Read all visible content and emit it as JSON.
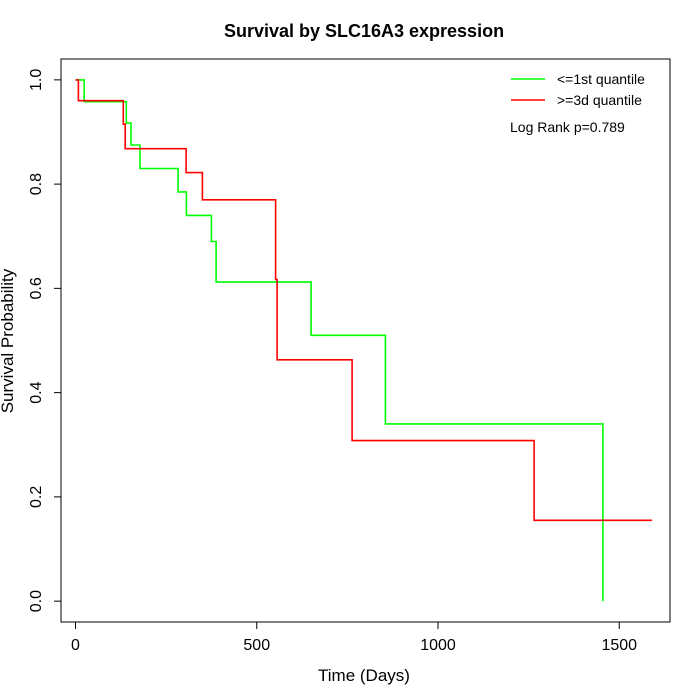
{
  "chart_data": {
    "type": "line",
    "title": "Survival by SLC16A3 expression",
    "xlabel": "Time (Days)",
    "ylabel": "Survival Probability",
    "xlim": [
      -40,
      1640
    ],
    "ylim": [
      -0.04,
      1.04
    ],
    "x_ticks": [
      0,
      500,
      1000,
      1500
    ],
    "y_ticks": [
      0.0,
      0.2,
      0.4,
      0.6,
      0.8,
      1.0
    ],
    "x_tick_labels": [
      "0",
      "500",
      "1000",
      "1500"
    ],
    "y_tick_labels": [
      "0.0",
      "0.2",
      "0.4",
      "0.6",
      "0.8",
      "1.0"
    ],
    "grid": false,
    "legend_position": "top-right",
    "annotation": "Log Rank p=0.789",
    "series": [
      {
        "name": "<=1st quantile",
        "color": "#00ff00",
        "steps": [
          [
            0,
            1.0
          ],
          [
            24,
            0.958
          ],
          [
            140,
            0.917
          ],
          [
            153,
            0.875
          ],
          [
            178,
            0.83
          ],
          [
            283,
            0.785
          ],
          [
            306,
            0.74
          ],
          [
            375,
            0.69
          ],
          [
            388,
            0.612
          ],
          [
            650,
            0.51
          ],
          [
            855,
            0.34
          ],
          [
            1455,
            0.0
          ]
        ]
      },
      {
        "name": ">=3d quantile",
        "color": "#ff0000",
        "steps": [
          [
            0,
            1.0
          ],
          [
            8,
            0.96
          ],
          [
            132,
            0.915
          ],
          [
            137,
            0.868
          ],
          [
            305,
            0.822
          ],
          [
            350,
            0.77
          ],
          [
            552,
            0.617
          ],
          [
            556,
            0.463
          ],
          [
            763,
            0.308
          ],
          [
            1265,
            0.155
          ],
          [
            1590,
            0.155
          ]
        ]
      }
    ]
  }
}
